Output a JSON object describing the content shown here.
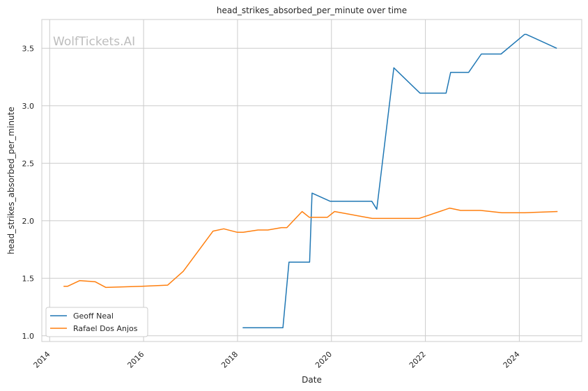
{
  "chart_data": {
    "type": "line",
    "title": "head_strikes_absorbed_per_minute over time",
    "xlabel": "Date",
    "ylabel": "head_strikes_absorbed_per_minute",
    "watermark": "WolfTickets.AI",
    "xlim": [
      "2013-11-01",
      "2025-05-01"
    ],
    "ylim": [
      0.95,
      3.75
    ],
    "x_ticks": [
      "2014",
      "2016",
      "2018",
      "2020",
      "2022",
      "2024"
    ],
    "y_ticks": [
      "1.0",
      "1.5",
      "2.0",
      "2.5",
      "3.0",
      "3.5"
    ],
    "grid": true,
    "legend_position": "lower-left",
    "series": [
      {
        "name": "Geoff Neal",
        "color": "#1f77b4",
        "points": [
          [
            "2018-02-10",
            1.07
          ],
          [
            "2018-06-01",
            1.07
          ],
          [
            "2018-12-20",
            1.07
          ],
          [
            "2019-02-05",
            1.64
          ],
          [
            "2019-07-15",
            1.64
          ],
          [
            "2019-08-03",
            2.24
          ],
          [
            "2019-12-21",
            2.17
          ],
          [
            "2020-06-15",
            2.17
          ],
          [
            "2020-11-10",
            2.17
          ],
          [
            "2020-12-19",
            2.1
          ],
          [
            "2021-05-01",
            3.33
          ],
          [
            "2021-11-20",
            3.11
          ],
          [
            "2022-06-11",
            3.11
          ],
          [
            "2022-07-16",
            3.29
          ],
          [
            "2022-12-03",
            3.29
          ],
          [
            "2023-03-12",
            3.45
          ],
          [
            "2023-08-12",
            3.45
          ],
          [
            "2024-02-10",
            3.62
          ],
          [
            "2024-02-25",
            3.62
          ],
          [
            "2024-10-19",
            3.5
          ]
        ]
      },
      {
        "name": "Rafael Dos Anjos",
        "color": "#ff7f0e",
        "points": [
          [
            "2014-04-19",
            1.43
          ],
          [
            "2014-05-20",
            1.43
          ],
          [
            "2014-08-23",
            1.48
          ],
          [
            "2014-12-20",
            1.47
          ],
          [
            "2015-03-14",
            1.42
          ],
          [
            "2015-12-19",
            1.43
          ],
          [
            "2016-07-07",
            1.44
          ],
          [
            "2016-11-05",
            1.56
          ],
          [
            "2017-06-25",
            1.91
          ],
          [
            "2017-09-16",
            1.93
          ],
          [
            "2017-12-30",
            1.9
          ],
          [
            "2018-02-15",
            1.9
          ],
          [
            "2018-06-09",
            1.92
          ],
          [
            "2018-08-25",
            1.92
          ],
          [
            "2018-12-08",
            1.94
          ],
          [
            "2019-01-19",
            1.94
          ],
          [
            "2019-05-18",
            2.08
          ],
          [
            "2019-07-13",
            2.03
          ],
          [
            "2019-11-30",
            2.03
          ],
          [
            "2020-01-25",
            2.08
          ],
          [
            "2020-11-14",
            2.02
          ],
          [
            "2021-05-15",
            2.02
          ],
          [
            "2021-11-13",
            2.02
          ],
          [
            "2022-07-09",
            2.11
          ],
          [
            "2022-10-01",
            2.09
          ],
          [
            "2023-03-04",
            2.09
          ],
          [
            "2023-08-19",
            2.07
          ],
          [
            "2024-02-10",
            2.07
          ],
          [
            "2024-10-25",
            2.08
          ]
        ]
      }
    ]
  }
}
